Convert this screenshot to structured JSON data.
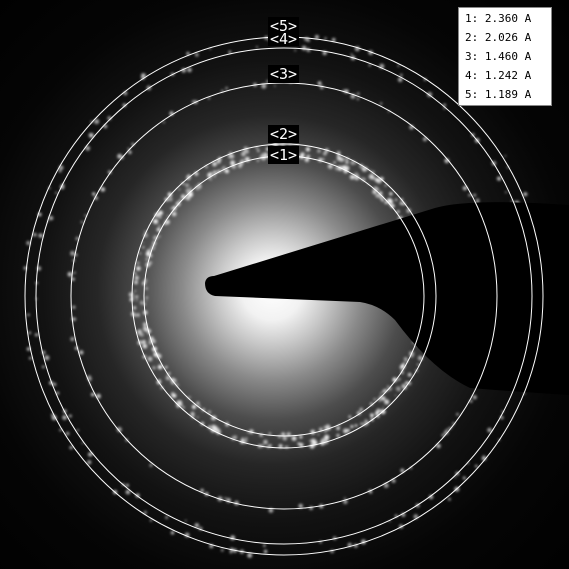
{
  "legend": {
    "rows": [
      {
        "index": "1:",
        "value": "2.360",
        "unit": "A"
      },
      {
        "index": "2:",
        "value": "2.026",
        "unit": "A"
      },
      {
        "index": "3:",
        "value": "1.460",
        "unit": "A"
      },
      {
        "index": "4:",
        "value": "1.242",
        "unit": "A"
      },
      {
        "index": "5:",
        "value": "1.189",
        "unit": "A"
      }
    ]
  },
  "ring_labels": {
    "ring1": "<1>",
    "ring2": "<2>",
    "ring3": "<3>",
    "ring4": "<4>",
    "ring5": "<5>"
  },
  "colors": {
    "background": "#000000",
    "ring_line": "#ffffff",
    "beam_stop": "#000000",
    "legend_bg": "#ffffff",
    "legend_text": "#000000"
  }
}
